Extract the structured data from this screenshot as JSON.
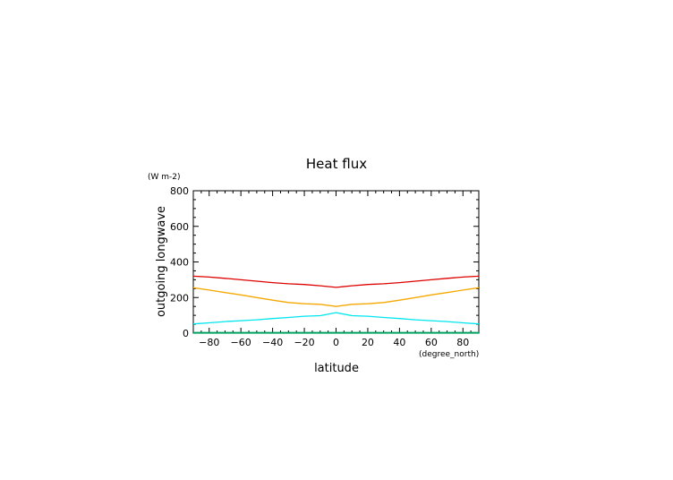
{
  "chart_data": {
    "type": "line",
    "title": "Heat flux",
    "xlabel": "latitude",
    "ylabel": "outgoing longwave",
    "xunits": "(degree_north)",
    "yunits": "(W m-2)",
    "xlim": [
      -90,
      90
    ],
    "ylim": [
      0,
      800
    ],
    "xticks": [
      -80,
      -60,
      -40,
      -20,
      0,
      20,
      40,
      60,
      80
    ],
    "yticks": [
      0,
      200,
      400,
      600,
      800
    ],
    "x": [
      -90,
      -80,
      -70,
      -60,
      -50,
      -40,
      -30,
      -20,
      -10,
      0,
      10,
      20,
      30,
      40,
      50,
      60,
      70,
      80,
      90
    ],
    "series": [
      {
        "color": "#dd0000",
        "values": [
          320,
          315,
          308,
          300,
          292,
          284,
          277,
          273,
          266,
          257,
          266,
          273,
          277,
          284,
          292,
          300,
          308,
          315,
          320
        ]
      },
      {
        "color": "#f5a800",
        "values": [
          255,
          242,
          228,
          215,
          200,
          185,
          172,
          165,
          162,
          150,
          162,
          165,
          172,
          185,
          200,
          215,
          228,
          242,
          255
        ]
      },
      {
        "color": "#00e5ee",
        "values": [
          52,
          58,
          65,
          70,
          75,
          82,
          88,
          95,
          98,
          115,
          98,
          95,
          88,
          82,
          75,
          70,
          65,
          58,
          52
        ]
      },
      {
        "color": "#00a060",
        "values": [
          2,
          2,
          2,
          2,
          2,
          2,
          2,
          2,
          2,
          2,
          2,
          2,
          2,
          2,
          2,
          2,
          2,
          2,
          2
        ]
      }
    ],
    "grid": false,
    "legend": "none"
  }
}
